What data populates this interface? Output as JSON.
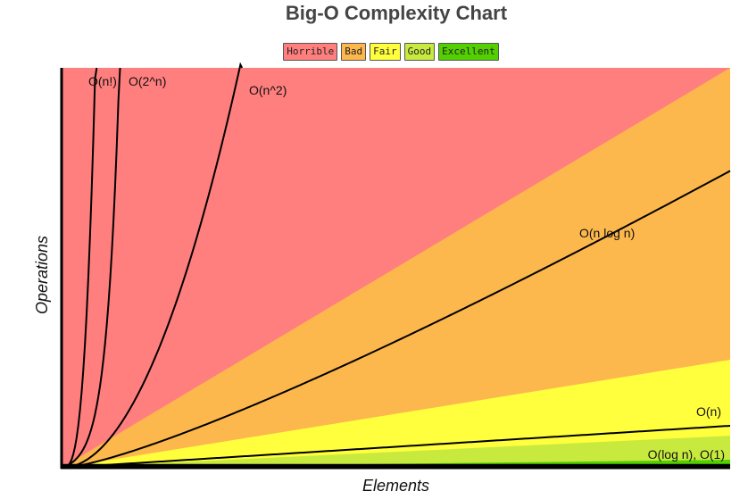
{
  "chart_data": {
    "type": "line",
    "title": "Big-O Complexity Chart",
    "xlabel": "Elements",
    "ylabel": "Operations",
    "xlim": [
      0,
      100
    ],
    "ylim": [
      0,
      100
    ],
    "legend_position": "top-center",
    "legend": [
      {
        "name": "Horrible",
        "color": "#ff7f7e"
      },
      {
        "name": "Bad",
        "color": "#fdb84d"
      },
      {
        "name": "Fair",
        "color": "#ffff3d"
      },
      {
        "name": "Good",
        "color": "#c8ea3f"
      },
      {
        "name": "Excellent",
        "color": "#53d000"
      }
    ],
    "regions": [
      {
        "name": "Horrible",
        "color": "#ff7f7e",
        "upper": "top"
      },
      {
        "name": "Bad",
        "color": "#fdb84d",
        "upper_at_xmax": 100
      },
      {
        "name": "Fair",
        "color": "#ffff3d",
        "upper_at_xmax": 27
      },
      {
        "name": "Good",
        "color": "#c8ea3f",
        "upper_at_xmax": 8
      },
      {
        "name": "Excellent",
        "color": "#53d000",
        "upper_at_xmax": 2
      }
    ],
    "series": [
      {
        "name": "O(n!)",
        "function": "factorial",
        "label": "O(n!)"
      },
      {
        "name": "O(2^n)",
        "function": "exponential",
        "label": "O(2^n)"
      },
      {
        "name": "O(n^2)",
        "function": "quadratic",
        "label": "O(n^2)"
      },
      {
        "name": "O(n log n)",
        "function": "nlogn",
        "label": "O(n log n)"
      },
      {
        "name": "O(n)",
        "function": "linear",
        "label": "O(n)"
      },
      {
        "name": "O(log n), O(1)",
        "function": "constant",
        "label": "O(log n), O(1)"
      }
    ]
  }
}
